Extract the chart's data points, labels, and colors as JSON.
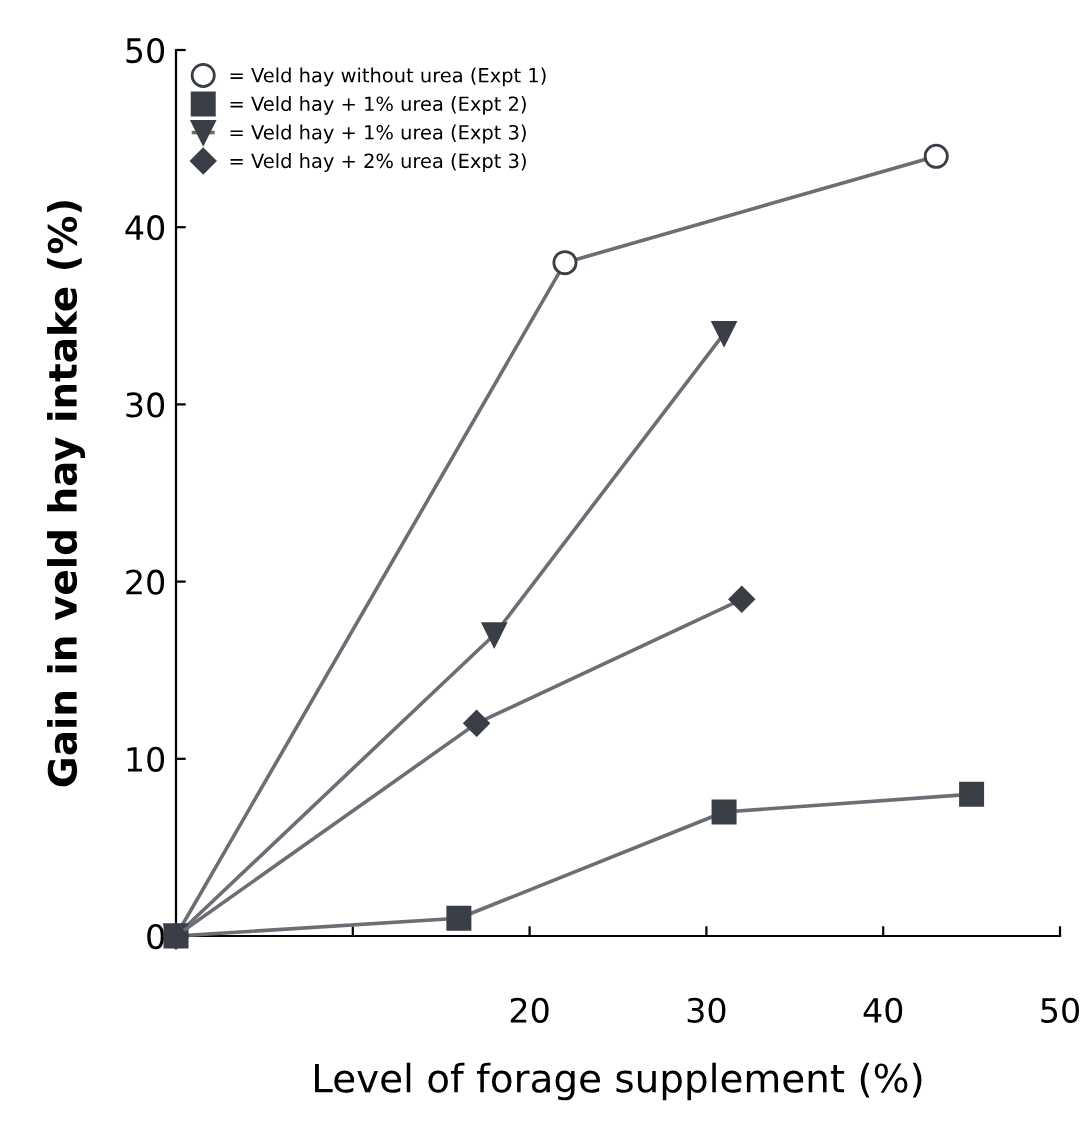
{
  "chart_data": {
    "type": "line",
    "xlabel": "Level of forage supplement (%)",
    "ylabel": "Gain in veld hay intake (%)",
    "xlim": [
      0,
      50
    ],
    "ylim": [
      0,
      50
    ],
    "xticks": [
      {
        "value": 0,
        "label": null
      },
      {
        "value": 10,
        "label": null
      },
      20,
      30,
      40,
      50
    ],
    "yticks": [
      0,
      10,
      20,
      30,
      40,
      50
    ],
    "legend": "top left",
    "grid": false,
    "series": [
      {
        "name": "= Veld hay without urea (Expt 1)",
        "color": "#3a3f47",
        "marker": "circle",
        "x": [
          0,
          22,
          43
        ],
        "values": [
          0,
          38,
          44
        ]
      },
      {
        "name": "= Veld hay + 1% urea (Expt 2)",
        "color": "#3a3f47",
        "marker": "square",
        "x": [
          0,
          16,
          31,
          45
        ],
        "values": [
          0,
          1,
          7,
          8
        ]
      },
      {
        "name": "= Veld hay + 1% urea (Expt 3)",
        "color": "#3a3f47",
        "marker": "triangle",
        "x": [
          0,
          18,
          31
        ],
        "values": [
          0,
          17,
          34
        ]
      },
      {
        "name": "= Veld hay + 2% urea (Expt 3)",
        "color": "#3a3f47",
        "marker": "diamond",
        "x": [
          0,
          17,
          32
        ],
        "values": [
          0,
          12,
          19
        ]
      }
    ]
  }
}
